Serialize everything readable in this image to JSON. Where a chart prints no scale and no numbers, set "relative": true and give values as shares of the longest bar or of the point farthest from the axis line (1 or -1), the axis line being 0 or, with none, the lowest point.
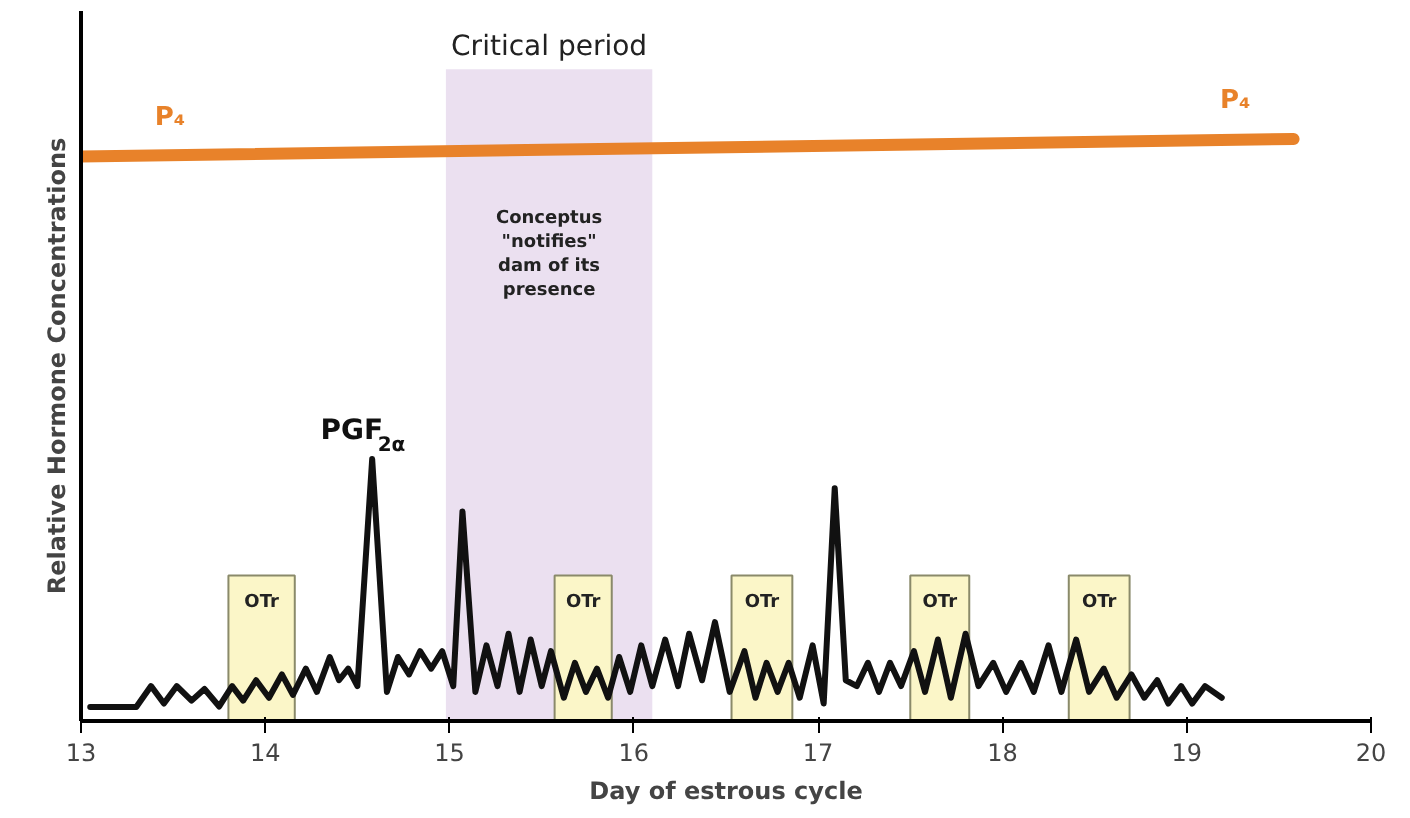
{
  "chart_data": {
    "type": "line",
    "relative": true,
    "xlabel": "Day of estrous cycle",
    "ylabel": "Relative Hormone Concentrations",
    "xlim": [
      13,
      20
    ],
    "xticks": [
      13,
      14,
      15,
      16,
      17,
      18,
      19,
      20
    ],
    "grid": false,
    "legend": false,
    "marker": "none",
    "line_style": "solid",
    "series": [
      {
        "name": "P₄",
        "color": "#e8822a",
        "x": [
          13,
          19.58
        ],
        "values": [
          0.97,
          1
        ]
      },
      {
        "name": "PGF$_{2α}$",
        "color": "#111111",
        "x": [
          13.05,
          13.3,
          13.38,
          13.45,
          13.52,
          13.6,
          13.67,
          13.75,
          13.82,
          13.88,
          13.95,
          14.02,
          14.09,
          14.15,
          14.22,
          14.28,
          14.35,
          14.4,
          14.45,
          14.5,
          14.58,
          14.66,
          14.72,
          14.78,
          14.84,
          14.9,
          14.96,
          15.02,
          15.07,
          15.14,
          15.2,
          15.26,
          15.32,
          15.38,
          15.44,
          15.5,
          15.55,
          15.62,
          15.68,
          15.74,
          15.8,
          15.86,
          15.92,
          15.98,
          16.04,
          16.1,
          16.17,
          16.24,
          16.3,
          16.37,
          16.44,
          16.52,
          16.6,
          16.66,
          16.72,
          16.78,
          16.84,
          16.9,
          16.97,
          17.03,
          17.09,
          17.15,
          17.21,
          17.27,
          17.33,
          17.39,
          17.45,
          17.52,
          17.58,
          17.65,
          17.72,
          17.8,
          17.87,
          17.95,
          18.02,
          18.1,
          18.17,
          18.25,
          18.32,
          18.4,
          18.47,
          18.55,
          18.62,
          18.7,
          18.77,
          18.84,
          18.9,
          18.97,
          19.03,
          19.1,
          19.19
        ],
        "values": [
          0.024,
          0.024,
          0.06,
          0.03,
          0.06,
          0.035,
          0.055,
          0.025,
          0.06,
          0.035,
          0.07,
          0.04,
          0.08,
          0.045,
          0.09,
          0.05,
          0.11,
          0.07,
          0.09,
          0.06,
          0.45,
          0.05,
          0.11,
          0.08,
          0.12,
          0.09,
          0.12,
          0.06,
          0.36,
          0.05,
          0.13,
          0.06,
          0.15,
          0.05,
          0.14,
          0.06,
          0.12,
          0.04,
          0.1,
          0.05,
          0.09,
          0.04,
          0.11,
          0.05,
          0.13,
          0.06,
          0.14,
          0.06,
          0.15,
          0.07,
          0.17,
          0.05,
          0.12,
          0.04,
          0.1,
          0.05,
          0.1,
          0.04,
          0.13,
          0.03,
          0.4,
          0.07,
          0.06,
          0.1,
          0.05,
          0.1,
          0.06,
          0.12,
          0.05,
          0.14,
          0.04,
          0.15,
          0.06,
          0.1,
          0.05,
          0.1,
          0.05,
          0.13,
          0.05,
          0.14,
          0.05,
          0.09,
          0.04,
          0.08,
          0.04,
          0.07,
          0.03,
          0.06,
          0.03,
          0.06,
          0.04
        ]
      }
    ],
    "bands": [
      {
        "axis": "x",
        "from": 14.98,
        "to": 16.1,
        "label": "Critical period",
        "color": "#ebe0f0"
      },
      {
        "axis": "x",
        "from": 13.8,
        "to": 14.16,
        "label": "OTr",
        "color": "#fbf6c8"
      },
      {
        "axis": "x",
        "from": 15.57,
        "to": 15.88,
        "label": "OTr",
        "color": "#fbf6c8"
      },
      {
        "axis": "x",
        "from": 16.53,
        "to": 16.86,
        "label": "OTr",
        "color": "#fbf6c8"
      },
      {
        "axis": "x",
        "from": 17.5,
        "to": 17.82,
        "label": "OTr",
        "color": "#fbf6c8"
      },
      {
        "axis": "x",
        "from": 18.36,
        "to": 18.69,
        "label": "OTr",
        "color": "#fbf6c8"
      }
    ],
    "annotations": [
      "Conceptus\n\"notifies\"\ndam of its\npresence"
    ]
  }
}
